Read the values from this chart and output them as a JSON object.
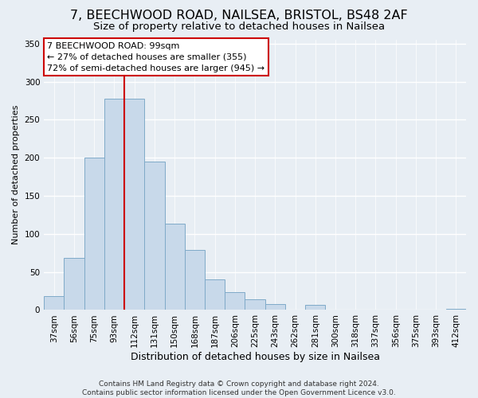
{
  "title": "7, BEECHWOOD ROAD, NAILSEA, BRISTOL, BS48 2AF",
  "subtitle": "Size of property relative to detached houses in Nailsea",
  "xlabel": "Distribution of detached houses by size in Nailsea",
  "ylabel": "Number of detached properties",
  "categories": [
    "37sqm",
    "56sqm",
    "75sqm",
    "93sqm",
    "112sqm",
    "131sqm",
    "150sqm",
    "168sqm",
    "187sqm",
    "206sqm",
    "225sqm",
    "243sqm",
    "262sqm",
    "281sqm",
    "300sqm",
    "318sqm",
    "337sqm",
    "356sqm",
    "375sqm",
    "393sqm",
    "412sqm"
  ],
  "values": [
    18,
    68,
    200,
    278,
    278,
    195,
    113,
    79,
    40,
    24,
    14,
    8,
    0,
    7,
    0,
    0,
    0,
    0,
    0,
    0,
    2
  ],
  "bar_color": "#c8d9ea",
  "bar_edge_color": "#7faac8",
  "vline_color": "#cc0000",
  "annotation_title": "7 BEECHWOOD ROAD: 99sqm",
  "annotation_line1": "← 27% of detached houses are smaller (355)",
  "annotation_line2": "72% of semi-detached houses are larger (945) →",
  "annotation_box_color": "#ffffff",
  "annotation_box_edge": "#cc0000",
  "ylim": [
    0,
    355
  ],
  "yticks": [
    0,
    50,
    100,
    150,
    200,
    250,
    300,
    350
  ],
  "footer1": "Contains HM Land Registry data © Crown copyright and database right 2024.",
  "footer2": "Contains public sector information licensed under the Open Government Licence v3.0.",
  "bg_color": "#e8eef4",
  "grid_color": "#ffffff",
  "title_fontsize": 11.5,
  "subtitle_fontsize": 9.5,
  "xlabel_fontsize": 9,
  "ylabel_fontsize": 8,
  "tick_fontsize": 7.5,
  "annotation_fontsize": 8,
  "footer_fontsize": 6.5
}
